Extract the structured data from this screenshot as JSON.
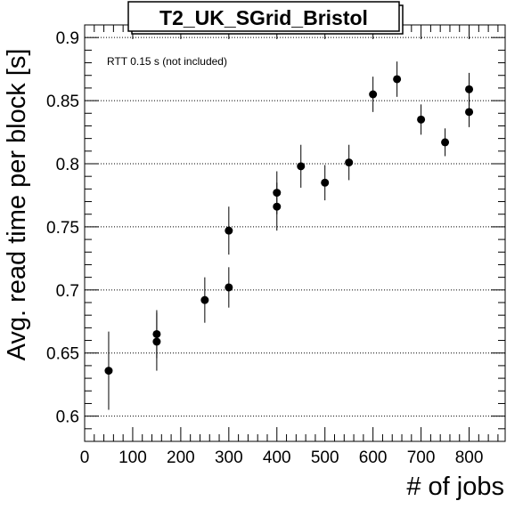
{
  "chart_data": {
    "type": "scatter",
    "title": "T2_UK_SGrid_Bristol",
    "annotation": "RTT 0.15 s (not included)",
    "xlabel": "# of jobs",
    "ylabel": "Avg. read time per block [s]",
    "xlim": [
      0,
      875
    ],
    "ylim": [
      0.58,
      0.91
    ],
    "x_ticks": [
      0,
      100,
      200,
      300,
      400,
      500,
      600,
      700,
      800
    ],
    "x_tick_labels": [
      "0",
      "100",
      "200",
      "300",
      "400",
      "500",
      "600",
      "700",
      "800"
    ],
    "y_ticks": [
      0.6,
      0.65,
      0.7,
      0.75,
      0.8,
      0.85,
      0.9
    ],
    "y_tick_labels": [
      "0.6",
      "0.65",
      "0.7",
      "0.75",
      "0.8",
      "0.85",
      "0.9"
    ],
    "grid": "horizontal-dotted",
    "points": [
      {
        "x": 50,
        "y": 0.636,
        "err": 0.031
      },
      {
        "x": 150,
        "y": 0.665,
        "err": 0.019
      },
      {
        "x": 150,
        "y": 0.659,
        "err": 0.023
      },
      {
        "x": 250,
        "y": 0.692,
        "err": 0.018
      },
      {
        "x": 300,
        "y": 0.702,
        "err": 0.016
      },
      {
        "x": 300,
        "y": 0.747,
        "err": 0.019
      },
      {
        "x": 400,
        "y": 0.766,
        "err": 0.019
      },
      {
        "x": 400,
        "y": 0.777,
        "err": 0.017
      },
      {
        "x": 450,
        "y": 0.798,
        "err": 0.017
      },
      {
        "x": 500,
        "y": 0.785,
        "err": 0.014
      },
      {
        "x": 550,
        "y": 0.801,
        "err": 0.014
      },
      {
        "x": 600,
        "y": 0.855,
        "err": 0.014
      },
      {
        "x": 650,
        "y": 0.867,
        "err": 0.014
      },
      {
        "x": 700,
        "y": 0.835,
        "err": 0.012
      },
      {
        "x": 750,
        "y": 0.817,
        "err": 0.011
      },
      {
        "x": 800,
        "y": 0.859,
        "err": 0.013
      },
      {
        "x": 800,
        "y": 0.841,
        "err": 0.012
      }
    ]
  }
}
